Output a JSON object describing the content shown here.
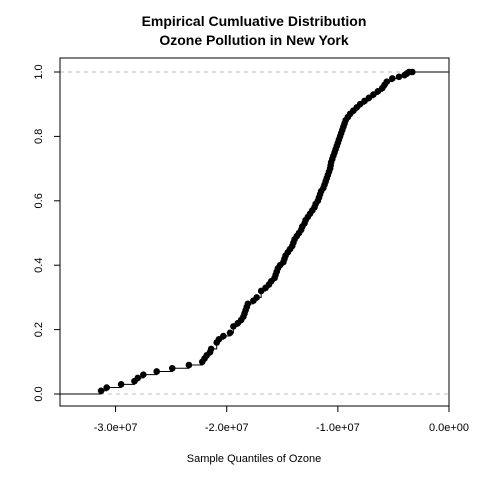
{
  "chart_data": {
    "type": "scatter",
    "title": "Empirical Cumluative Distribution",
    "subtitle": "Ozone Pollution in New York",
    "xlabel": "Sample Quantiles of Ozone",
    "ylabel": "",
    "xlim": [
      -35000000,
      0
    ],
    "ylim": [
      0,
      1
    ],
    "x_ticks": [
      -30000000,
      -20000000,
      -10000000,
      0
    ],
    "x_tick_labels": [
      "-3.0e+07",
      "-2.0e+07",
      "-1.0e+07",
      "0.0e+00"
    ],
    "y_ticks": [
      0,
      0.2,
      0.4,
      0.6,
      0.8,
      1.0
    ],
    "y_tick_labels": [
      "0.0",
      "0.2",
      "0.4",
      "0.6",
      "0.8",
      "1.0"
    ],
    "reference_lines": [
      0,
      1
    ],
    "grid": false,
    "legend": "none",
    "series": [
      {
        "x": [
          -31300000,
          -30800000,
          -29500000,
          -28300000,
          -28000000,
          -27500000,
          -26300000,
          -24900000,
          -23400000,
          -22200000,
          -22000000,
          -21800000,
          -21500000,
          -21400000,
          -20900000,
          -20700000,
          -20300000,
          -19700000,
          -19400000,
          -19000000,
          -18700000,
          -18500000,
          -18400000,
          -18300000,
          -18200000,
          -18100000,
          -17600000,
          -17300000,
          -16900000,
          -16500000,
          -16200000,
          -16000000,
          -15700000,
          -15600000,
          -15500000,
          -15400000,
          -15200000,
          -14900000,
          -14800000,
          -14700000,
          -14500000,
          -14300000,
          -14100000,
          -14000000,
          -13900000,
          -13700000,
          -13500000,
          -13300000,
          -13200000,
          -13000000,
          -12900000,
          -12700000,
          -12500000,
          -12300000,
          -12100000,
          -12000000,
          -11800000,
          -11700000,
          -11600000,
          -11500000,
          -11300000,
          -11200000,
          -11100000,
          -11000000,
          -10900000,
          -10800000,
          -10700000,
          -10650000,
          -10600000,
          -10500000,
          -10400000,
          -10300000,
          -10200000,
          -10100000,
          -10000000,
          -9900000,
          -9800000,
          -9700000,
          -9600000,
          -9500000,
          -9400000,
          -9300000,
          -9100000,
          -8900000,
          -8600000,
          -8300000,
          -8000000,
          -7600000,
          -7200000,
          -6800000,
          -6400000,
          -6000000,
          -5800000,
          -5600000,
          -5100000,
          -4500000,
          -4000000,
          -3800000,
          -3600000,
          -3300000
        ],
        "y": [
          0.01,
          0.02,
          0.03,
          0.04,
          0.05,
          0.06,
          0.07,
          0.08,
          0.09,
          0.1,
          0.11,
          0.12,
          0.13,
          0.14,
          0.16,
          0.17,
          0.18,
          0.19,
          0.21,
          0.22,
          0.23,
          0.24,
          0.25,
          0.26,
          0.27,
          0.28,
          0.29,
          0.3,
          0.32,
          0.33,
          0.34,
          0.35,
          0.36,
          0.37,
          0.38,
          0.39,
          0.4,
          0.41,
          0.42,
          0.43,
          0.44,
          0.45,
          0.46,
          0.47,
          0.48,
          0.49,
          0.5,
          0.51,
          0.52,
          0.53,
          0.54,
          0.55,
          0.56,
          0.57,
          0.58,
          0.59,
          0.6,
          0.61,
          0.62,
          0.63,
          0.64,
          0.65,
          0.66,
          0.67,
          0.68,
          0.69,
          0.7,
          0.71,
          0.72,
          0.73,
          0.74,
          0.75,
          0.76,
          0.77,
          0.78,
          0.79,
          0.8,
          0.81,
          0.82,
          0.83,
          0.84,
          0.85,
          0.86,
          0.87,
          0.88,
          0.89,
          0.9,
          0.91,
          0.92,
          0.93,
          0.94,
          0.95,
          0.96,
          0.97,
          0.98,
          0.985,
          0.99,
          0.995,
          1.0,
          1.0
        ]
      }
    ],
    "colors": {
      "points": "#000000",
      "step_line": "#000000",
      "reference_line": "#bebebe",
      "frame": "#000000"
    }
  }
}
